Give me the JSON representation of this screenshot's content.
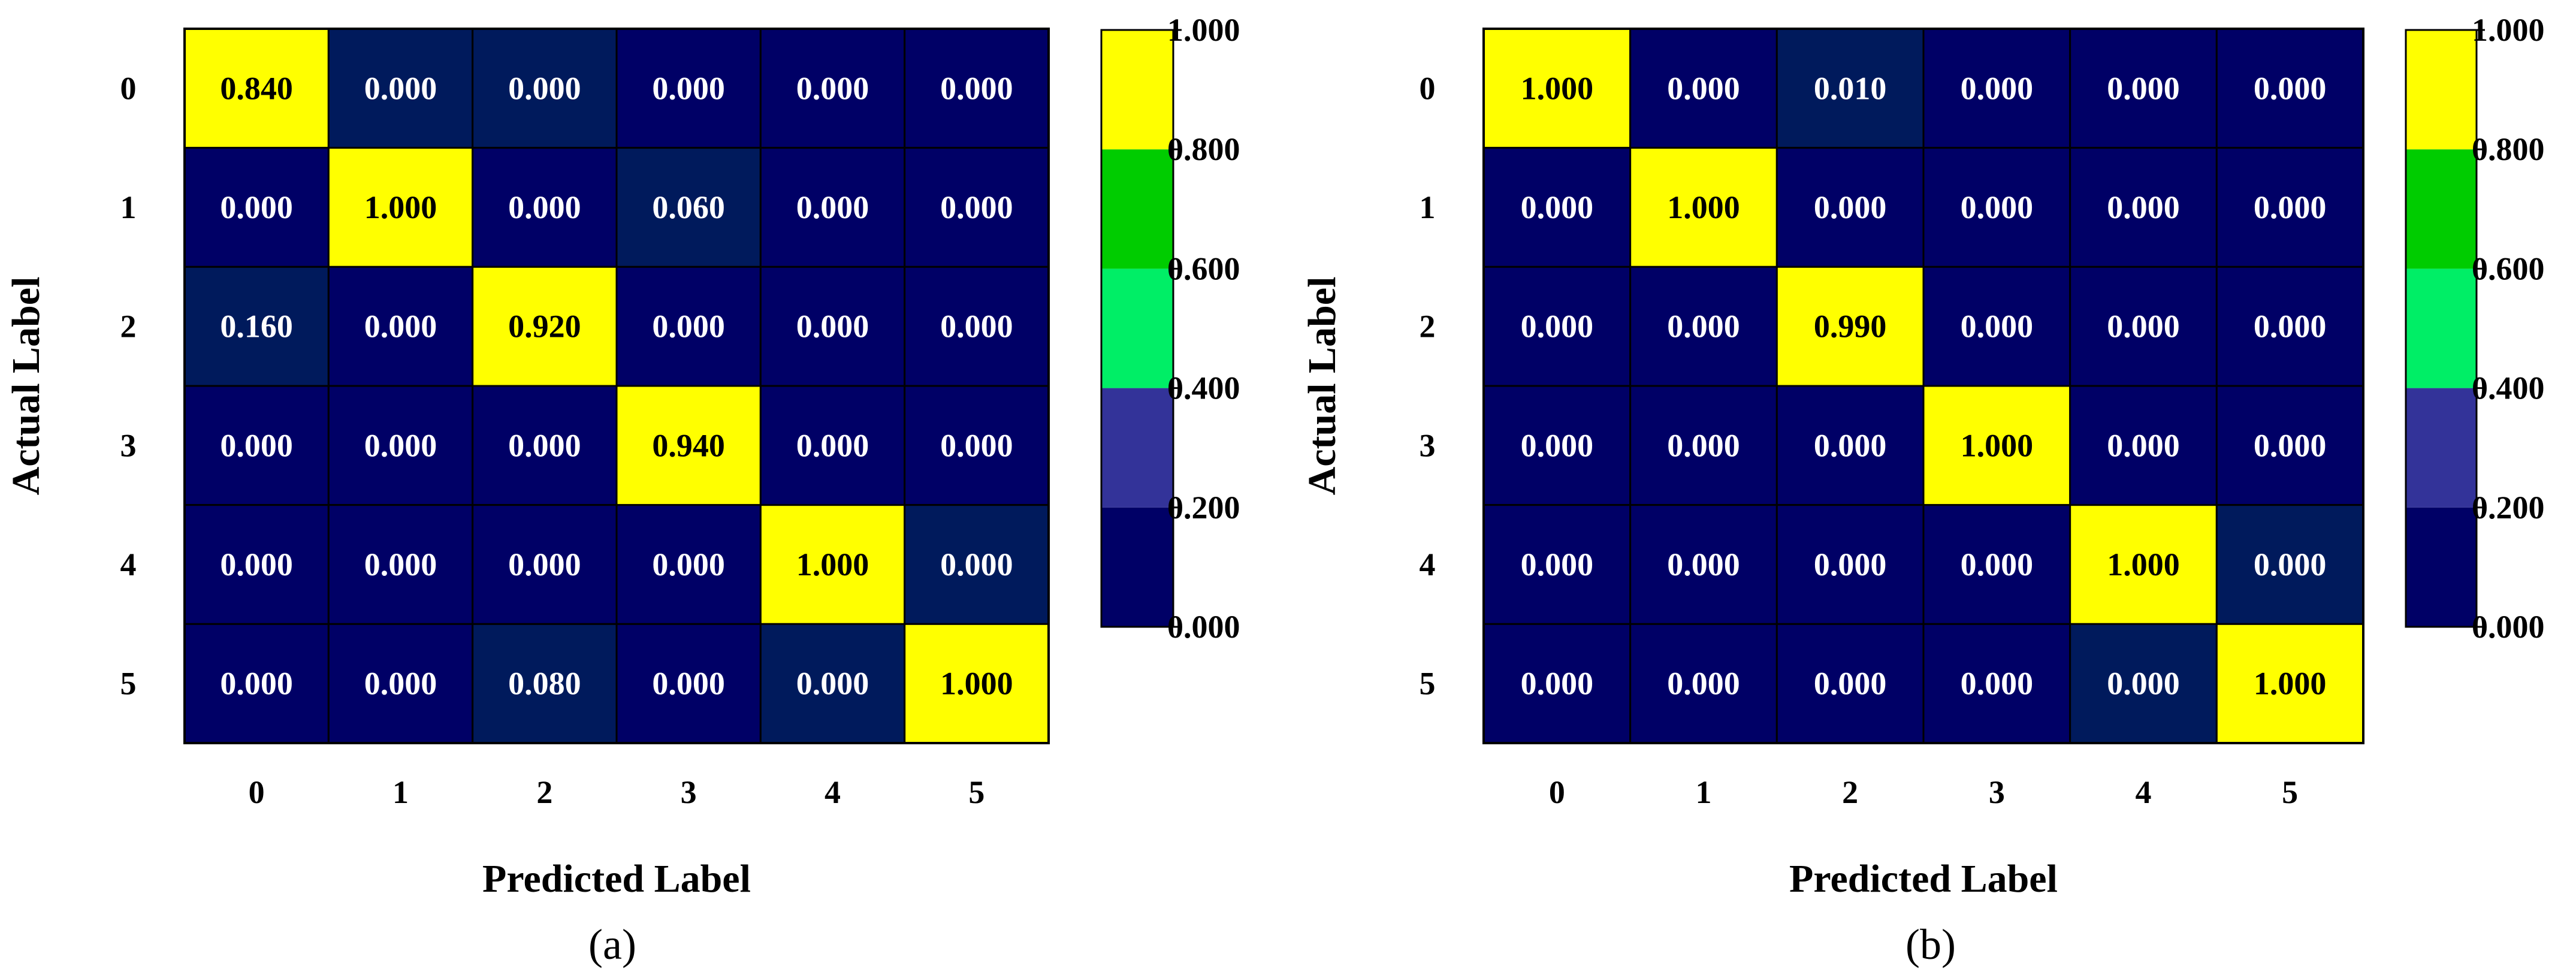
{
  "chart_data": [
    {
      "type": "heatmap",
      "panel_label": "(a)",
      "xlabel": "Predicted Label",
      "ylabel": "Actual Label",
      "x_categories": [
        "0",
        "1",
        "2",
        "3",
        "4",
        "5"
      ],
      "y_categories": [
        "0",
        "1",
        "2",
        "3",
        "4",
        "5"
      ],
      "values": [
        [
          "0.840",
          "0.000",
          "0.000",
          "0.000",
          "0.000",
          "0.000"
        ],
        [
          "0.000",
          "1.000",
          "0.000",
          "0.060",
          "0.000",
          "0.000"
        ],
        [
          "0.160",
          "0.000",
          "0.920",
          "0.000",
          "0.000",
          "0.000"
        ],
        [
          "0.000",
          "0.000",
          "0.000",
          "0.940",
          "0.000",
          "0.000"
        ],
        [
          "0.000",
          "0.000",
          "0.000",
          "0.000",
          "1.000",
          "0.000"
        ],
        [
          "0.000",
          "0.000",
          "0.080",
          "0.000",
          "0.000",
          "1.000"
        ]
      ],
      "colorbar_ticks": [
        "0.000",
        "0.200",
        "0.400",
        "0.600",
        "0.800",
        "1.000"
      ],
      "colorbar_colors": [
        "#000066",
        "#333399",
        "#00ee66",
        "#00cc00",
        "#ffff00"
      ]
    },
    {
      "type": "heatmap",
      "panel_label": "(b)",
      "xlabel": "Predicted Label",
      "ylabel": "Actual Label",
      "x_categories": [
        "0",
        "1",
        "2",
        "3",
        "4",
        "5"
      ],
      "y_categories": [
        "0",
        "1",
        "2",
        "3",
        "4",
        "5"
      ],
      "values": [
        [
          "1.000",
          "0.000",
          "0.010",
          "0.000",
          "0.000",
          "0.000"
        ],
        [
          "0.000",
          "1.000",
          "0.000",
          "0.000",
          "0.000",
          "0.000"
        ],
        [
          "0.000",
          "0.000",
          "0.990",
          "0.000",
          "0.000",
          "0.000"
        ],
        [
          "0.000",
          "0.000",
          "0.000",
          "1.000",
          "0.000",
          "0.000"
        ],
        [
          "0.000",
          "0.000",
          "0.000",
          "0.000",
          "1.000",
          "0.000"
        ],
        [
          "0.000",
          "0.000",
          "0.000",
          "0.000",
          "0.000",
          "1.000"
        ]
      ],
      "colorbar_ticks": [
        "0.000",
        "0.200",
        "0.400",
        "0.600",
        "0.800",
        "1.000"
      ],
      "colorbar_colors": [
        "#000066",
        "#333399",
        "#00ee66",
        "#00cc00",
        "#ffff00"
      ]
    }
  ],
  "colors": {
    "low": "#000066",
    "low_alt": "#001a5c",
    "high": "#ffff00",
    "grid": "#000000",
    "cell_text_dark_bg": "#ffffff",
    "cell_text_light_bg": "#000000"
  }
}
